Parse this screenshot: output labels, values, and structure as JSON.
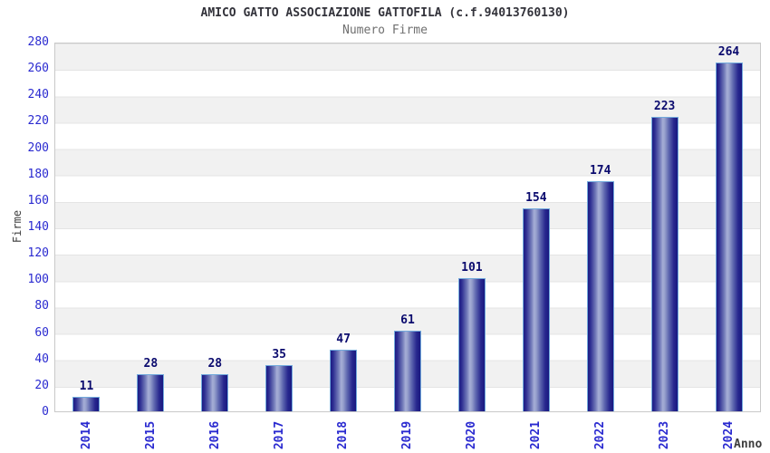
{
  "title": "AMICO GATTO ASSOCIAZIONE GATTOFILA (c.f.94013760130)",
  "subtitle": "Numero Firme",
  "chart_data": {
    "type": "bar",
    "categories": [
      "2014",
      "2015",
      "2016",
      "2017",
      "2018",
      "2019",
      "2020",
      "2021",
      "2022",
      "2023",
      "2024"
    ],
    "values": [
      11,
      28,
      28,
      35,
      47,
      61,
      101,
      154,
      174,
      223,
      264
    ],
    "title": "AMICO GATTO ASSOCIAZIONE GATTOFILA (c.f.94013760130)",
    "subtitle": "Numero Firme",
    "xlabel": "Anno",
    "ylabel": "Firme",
    "ylim": [
      0,
      280
    ],
    "yticks": [
      0,
      20,
      40,
      60,
      80,
      100,
      120,
      140,
      160,
      180,
      200,
      220,
      240,
      260,
      280
    ],
    "grid": "alternating horizontal gray/white bands every 20 units",
    "legend": "none",
    "colors": {
      "bar_dark": "#1c1c84",
      "bar_highlight": "#a6aed6",
      "bar_border": "#72aadc",
      "value_label": "#0b0b6e",
      "tick_label": "#2a2ad0",
      "band_gray": "#f1f1f1",
      "plot_border": "#c9c9c9",
      "title_text": "#32323a",
      "subtitle_text": "#6f6f6f"
    }
  }
}
